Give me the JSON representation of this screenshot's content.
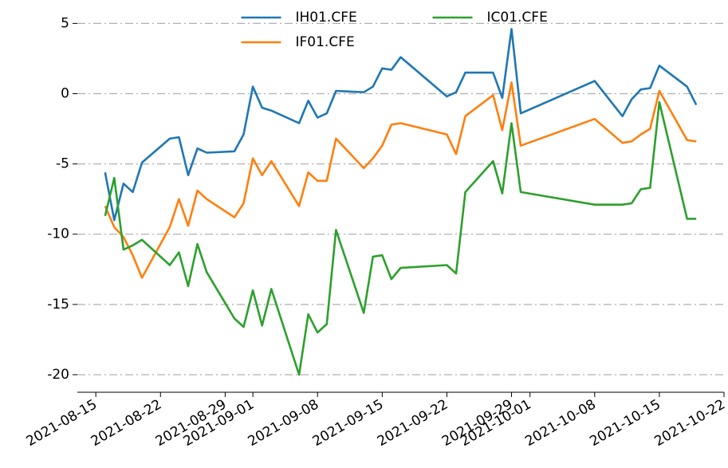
{
  "chart_data": {
    "type": "line",
    "x": [
      "2021-08-16",
      "2021-08-17",
      "2021-08-18",
      "2021-08-19",
      "2021-08-20",
      "2021-08-23",
      "2021-08-24",
      "2021-08-25",
      "2021-08-26",
      "2021-08-27",
      "2021-08-30",
      "2021-08-31",
      "2021-09-01",
      "2021-09-02",
      "2021-09-03",
      "2021-09-06",
      "2021-09-07",
      "2021-09-08",
      "2021-09-09",
      "2021-09-10",
      "2021-09-13",
      "2021-09-14",
      "2021-09-15",
      "2021-09-16",
      "2021-09-17",
      "2021-09-22",
      "2021-09-23",
      "2021-09-24",
      "2021-09-27",
      "2021-09-28",
      "2021-09-29",
      "2021-09-30",
      "2021-10-08",
      "2021-10-11",
      "2021-10-12",
      "2021-10-13",
      "2021-10-14",
      "2021-10-15",
      "2021-10-18",
      "2021-10-19"
    ],
    "series": [
      {
        "name": "IH01.CFE",
        "color": "#1f77b4",
        "values": [
          -5.6,
          -9,
          -6.4,
          -7,
          -4.9,
          -3.2,
          -3.1,
          -5.8,
          -3.9,
          -4.2,
          -4.1,
          -2.9,
          0.5,
          -1,
          -1.2,
          -2.1,
          -0.5,
          -1.7,
          -1.4,
          0.2,
          0.1,
          0.5,
          1.8,
          1.7,
          2.6,
          -0.2,
          0.1,
          1.5,
          1.5,
          -0.3,
          4.6,
          -1.4,
          0.9,
          -1.6,
          -0.4,
          0.3,
          0.4,
          2.0,
          0.5,
          -0.8
        ]
      },
      {
        "name": "IF01.CFE",
        "color": "#ff7f0e",
        "values": [
          -8,
          -9.5,
          -10.2,
          -11.5,
          -13.1,
          -9.5,
          -7.5,
          -9.4,
          -6.9,
          -7.5,
          -8.8,
          -7.8,
          -4.6,
          -5.8,
          -4.8,
          -8,
          -5.6,
          -6.2,
          -6.2,
          -3.2,
          -5.3,
          -4.6,
          -3.7,
          -2.2,
          -2.1,
          -2.9,
          -4.3,
          -1.6,
          -0.1,
          -2.6,
          0.8,
          -3.7,
          -1.8,
          -3.5,
          -3.4,
          -2.9,
          -2.5,
          0.2,
          -3.3,
          -3.4
        ]
      },
      {
        "name": "IC01.CFE",
        "color": "#2ca02c",
        "values": [
          -8.7,
          -6,
          -11.1,
          -10.8,
          -10.4,
          -12.2,
          -11.3,
          -13.7,
          -10.7,
          -12.7,
          -16,
          -16.6,
          -14,
          -16.5,
          -13.9,
          -20,
          -15.7,
          -17,
          -16.4,
          -9.7,
          -15.6,
          -11.6,
          -11.5,
          -13.2,
          -12.4,
          -12.2,
          -12.8,
          -7,
          -4.8,
          -7.1,
          -2.1,
          -7,
          -7.9,
          -7.9,
          -7.8,
          -6.8,
          -6.7,
          -0.6,
          -8.9,
          -8.9
        ]
      }
    ],
    "xlim": [
      "2021-08-13",
      "2021-10-22"
    ],
    "xticks": [
      "2021-08-15",
      "2021-08-22",
      "2021-08-29",
      "2021-09-01",
      "2021-09-08",
      "2021-09-15",
      "2021-09-22",
      "2021-09-29",
      "2021-10-01",
      "2021-10-08",
      "2021-10-15",
      "2021-10-22"
    ],
    "ylim": [
      -21.25,
      6.1
    ],
    "yticks": [
      5,
      0,
      -5,
      -10,
      -15,
      -20
    ],
    "grid": true,
    "legend": "upper center"
  }
}
